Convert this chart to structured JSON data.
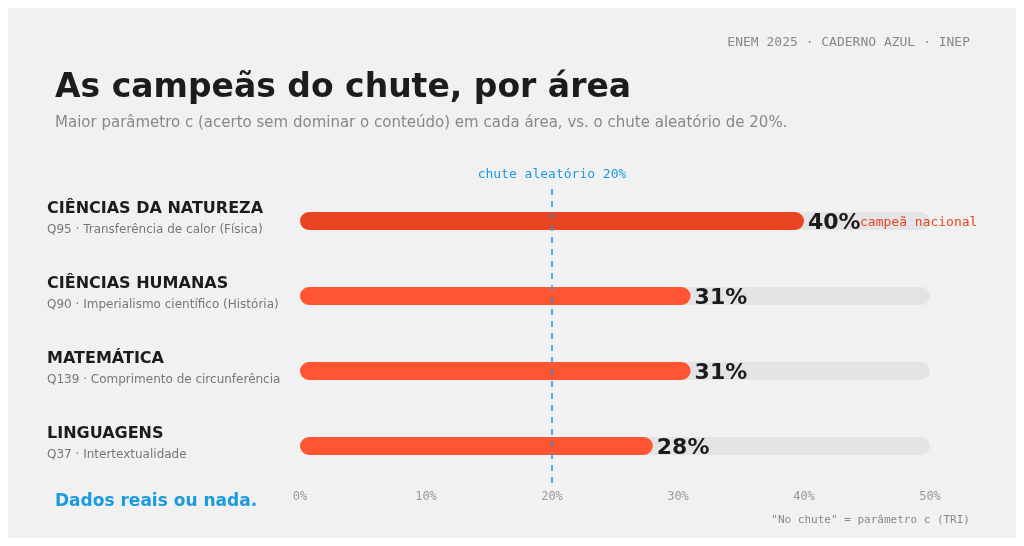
{
  "chart_data": {
    "type": "bar",
    "orientation": "horizontal",
    "title": "As campeãs do chute, por área",
    "subtitle": "Maior parâmetro c (acerto sem dominar o conteúdo) em cada área, vs. o chute aleatório de 20%.",
    "categories": [
      "CIÊNCIAS DA NATUREZA\nQ95 · Transferência de calor (Física)",
      "CIÊNCIAS HUMANAS\nQ90 · Imperialismo científico (História)",
      "MATEMÁTICA\nQ139 · Comprimento de circunferência",
      "LINGUAGENS\nQ37 · Intertextualidade"
    ],
    "values": [
      40,
      31,
      31,
      28
    ],
    "colors": [
      "#e8441f",
      "#ff5533",
      "#ff5533",
      "#ff5533"
    ],
    "value_labels": [
      "40%",
      "31%",
      "31%",
      "28%"
    ],
    "xlim": [
      0,
      50
    ],
    "xticks": [
      {
        "value": 0,
        "label": "0%"
      },
      {
        "value": 10,
        "label": "10%"
      },
      {
        "value": 20,
        "label": "20%"
      },
      {
        "value": 30,
        "label": "30%"
      },
      {
        "value": 40,
        "label": "40%"
      },
      {
        "value": 50,
        "label": "50%"
      }
    ],
    "ref_lines": [
      {
        "axis": "x",
        "value": 20,
        "label": "chute aleatório 20%",
        "color": "#1a9be0",
        "line_style": "dashed"
      }
    ],
    "annotations": [
      "ENEM 2025 · CADERNO AZUL · INEP",
      "campeã nacional",
      "Dados reais ou nada.",
      "\"No chute\" = parâmetro c (TRI)"
    ]
  }
}
